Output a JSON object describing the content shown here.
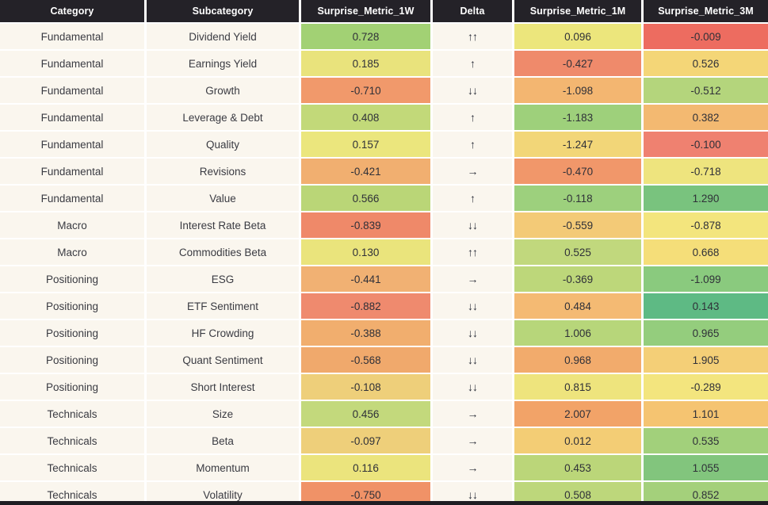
{
  "colors": {
    "header_bg": "#242228",
    "header_text": "#ffffff",
    "row_bg": "#faf6ee",
    "gap": "#ffffff",
    "body_text": "#3a3b42",
    "bottom_bar": "#1e1d22"
  },
  "chart_data": {
    "type": "heatmap",
    "title": "",
    "columns": [
      "Category",
      "Subcategory",
      "Surprise_Metric_1W",
      "Delta",
      "Surprise_Metric_1M",
      "Surprise_Metric_3M"
    ],
    "legend_position": "none",
    "rows": [
      {
        "category": "Fundamental",
        "subcategory": "Dividend Yield",
        "w1": "0.728",
        "w1_color": "#a2d174",
        "delta": "↑↑",
        "m1": "0.096",
        "m1_color": "#ece67c",
        "m3": "-0.009",
        "m3_color": "#ed6c60"
      },
      {
        "category": "Fundamental",
        "subcategory": "Earnings Yield",
        "w1": "0.185",
        "w1_color": "#e9e37c",
        "delta": "↑",
        "m1": "-0.427",
        "m1_color": "#ef8a6b",
        "m3": "0.526",
        "m3_color": "#f4d677"
      },
      {
        "category": "Fundamental",
        "subcategory": "Growth",
        "w1": "-0.710",
        "w1_color": "#f1996b",
        "delta": "↓↓",
        "m1": "-1.098",
        "m1_color": "#f3b671",
        "m3": "-0.512",
        "m3_color": "#b4d57c"
      },
      {
        "category": "Fundamental",
        "subcategory": "Leverage & Debt",
        "w1": "0.408",
        "w1_color": "#c2d979",
        "delta": "↑",
        "m1": "-1.183",
        "m1_color": "#9ed07b",
        "m3": "0.382",
        "m3_color": "#f3b971"
      },
      {
        "category": "Fundamental",
        "subcategory": "Quality",
        "w1": "0.157",
        "w1_color": "#ebe67d",
        "delta": "↑",
        "m1": "-1.247",
        "m1_color": "#f2d678",
        "m3": "-0.100",
        "m3_color": "#ef8170"
      },
      {
        "category": "Fundamental",
        "subcategory": "Revisions",
        "w1": "-0.421",
        "w1_color": "#f1af70",
        "delta": "→",
        "m1": "-0.470",
        "m1_color": "#f1976a",
        "m3": "-0.718",
        "m3_color": "#eee47e"
      },
      {
        "category": "Fundamental",
        "subcategory": "Value",
        "w1": "0.566",
        "w1_color": "#bad677",
        "delta": "↑",
        "m1": "-0.118",
        "m1_color": "#9dd07d",
        "m3": "1.290",
        "m3_color": "#79c37e"
      },
      {
        "category": "Macro",
        "subcategory": "Interest Rate Beta",
        "w1": "-0.839",
        "w1_color": "#ef8969",
        "delta": "↓↓",
        "m1": "-0.559",
        "m1_color": "#f3ca77",
        "m3": "-0.878",
        "m3_color": "#f3e57d"
      },
      {
        "category": "Macro",
        "subcategory": "Commodities Beta",
        "w1": "0.130",
        "w1_color": "#eae47c",
        "delta": "↑↑",
        "m1": "0.525",
        "m1_color": "#c1d87d",
        "m3": "0.668",
        "m3_color": "#f5de79"
      },
      {
        "category": "Positioning",
        "subcategory": "ESG",
        "w1": "-0.441",
        "w1_color": "#f1b173",
        "delta": "→",
        "m1": "-0.369",
        "m1_color": "#bdd77a",
        "m3": "-1.099",
        "m3_color": "#8aca7e"
      },
      {
        "category": "Positioning",
        "subcategory": "ETF Sentiment",
        "w1": "-0.882",
        "w1_color": "#ef8a6e",
        "delta": "↓↓",
        "m1": "0.484",
        "m1_color": "#f4ba73",
        "m3": "0.143",
        "m3_color": "#5eba84"
      },
      {
        "category": "Positioning",
        "subcategory": "HF Crowding",
        "w1": "-0.388",
        "w1_color": "#f1ae6e",
        "delta": "↓↓",
        "m1": "1.006",
        "m1_color": "#b7d67a",
        "m3": "0.965",
        "m3_color": "#94cd7d"
      },
      {
        "category": "Positioning",
        "subcategory": "Quant Sentiment",
        "w1": "-0.568",
        "w1_color": "#f0a96c",
        "delta": "↓↓",
        "m1": "0.968",
        "m1_color": "#f2ab6c",
        "m3": "1.905",
        "m3_color": "#f4cf77"
      },
      {
        "category": "Positioning",
        "subcategory": "Short Interest",
        "w1": "-0.108",
        "w1_color": "#eecf7a",
        "delta": "↓↓",
        "m1": "0.815",
        "m1_color": "#eee47d",
        "m3": "-0.289",
        "m3_color": "#f3e57e"
      },
      {
        "category": "Technicals",
        "subcategory": "Size",
        "w1": "0.456",
        "w1_color": "#c3d97c",
        "delta": "→",
        "m1": "2.007",
        "m1_color": "#f2a368",
        "m3": "1.101",
        "m3_color": "#f5c471"
      },
      {
        "category": "Technicals",
        "subcategory": "Beta",
        "w1": "-0.097",
        "w1_color": "#eecf7a",
        "delta": "→",
        "m1": "0.012",
        "m1_color": "#f3cd75",
        "m3": "0.535",
        "m3_color": "#a2d07b"
      },
      {
        "category": "Technicals",
        "subcategory": "Momentum",
        "w1": "0.116",
        "w1_color": "#ebe47d",
        "delta": "→",
        "m1": "0.453",
        "m1_color": "#bbd679",
        "m3": "1.055",
        "m3_color": "#82c57d"
      },
      {
        "category": "Technicals",
        "subcategory": "Volatility",
        "w1": "-0.750",
        "w1_color": "#f09267",
        "delta": "↓↓",
        "m1": "0.508",
        "m1_color": "#bdd77b",
        "m3": "0.852",
        "m3_color": "#a4d07b"
      }
    ]
  }
}
